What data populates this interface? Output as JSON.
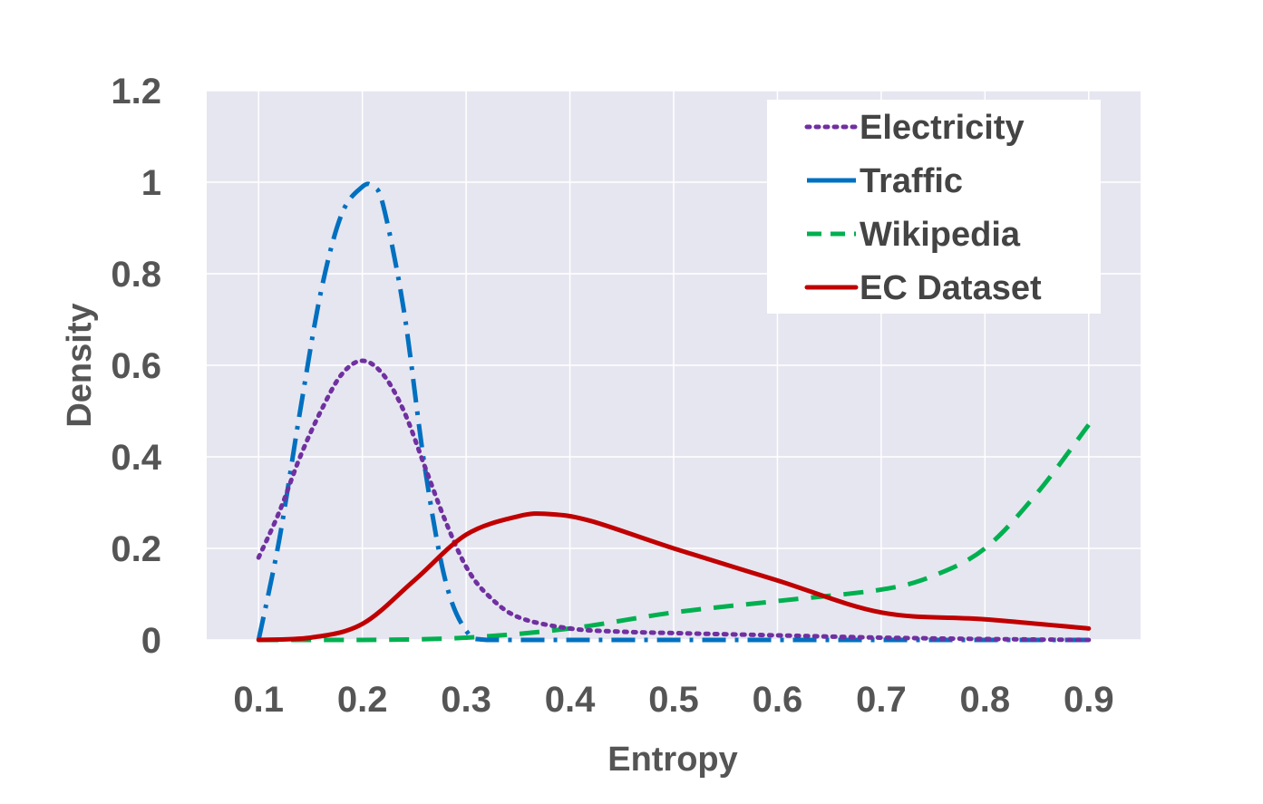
{
  "chart_data": {
    "type": "line",
    "title": "",
    "xlabel": "Entropy",
    "ylabel": "Density",
    "xlim": [
      0.05,
      0.95
    ],
    "ylim": [
      0,
      1.2
    ],
    "x_ticks": [
      "0.1",
      "0.2",
      "0.3",
      "0.4",
      "0.5",
      "0.6",
      "0.7",
      "0.8",
      "0.9"
    ],
    "y_ticks": [
      "0",
      "0.2",
      "0.4",
      "0.6",
      "0.8",
      "1",
      "1.2"
    ],
    "grid": true,
    "legend_position": "top-right",
    "plot_background": "#e6e6f0",
    "series": [
      {
        "name": "Electricity",
        "color": "#7030a0",
        "style": "dotted",
        "x": [
          0.1,
          0.12,
          0.14,
          0.16,
          0.18,
          0.2,
          0.22,
          0.24,
          0.26,
          0.28,
          0.3,
          0.32,
          0.35,
          0.4,
          0.45,
          0.5,
          0.6,
          0.7,
          0.8,
          0.9
        ],
        "y": [
          0.18,
          0.28,
          0.4,
          0.5,
          0.58,
          0.61,
          0.58,
          0.5,
          0.38,
          0.26,
          0.16,
          0.1,
          0.05,
          0.025,
          0.018,
          0.015,
          0.01,
          0.005,
          0.002,
          0.0
        ]
      },
      {
        "name": "Traffic",
        "color": "#0070c0",
        "style": "dashdot",
        "x": [
          0.1,
          0.12,
          0.14,
          0.16,
          0.18,
          0.2,
          0.21,
          0.22,
          0.24,
          0.26,
          0.28,
          0.3,
          0.32,
          0.4,
          0.5,
          0.6,
          0.7,
          0.8,
          0.9
        ],
        "y": [
          0.0,
          0.22,
          0.5,
          0.76,
          0.93,
          0.99,
          0.99,
          0.95,
          0.72,
          0.38,
          0.13,
          0.02,
          0.0,
          0.0,
          0.0,
          0.0,
          0.0,
          0.0,
          0.0
        ]
      },
      {
        "name": "Wikipedia",
        "color": "#00b050",
        "style": "dashed",
        "x": [
          0.1,
          0.2,
          0.3,
          0.4,
          0.5,
          0.6,
          0.7,
          0.75,
          0.8,
          0.85,
          0.9
        ],
        "y": [
          0.0,
          0.0,
          0.005,
          0.025,
          0.06,
          0.085,
          0.11,
          0.14,
          0.2,
          0.32,
          0.47
        ]
      },
      {
        "name": "EC Dataset",
        "color": "#c00000",
        "style": "solid",
        "x": [
          0.1,
          0.15,
          0.2,
          0.25,
          0.3,
          0.35,
          0.38,
          0.42,
          0.5,
          0.6,
          0.7,
          0.8,
          0.9
        ],
        "y": [
          0.0,
          0.005,
          0.035,
          0.13,
          0.23,
          0.27,
          0.275,
          0.26,
          0.2,
          0.13,
          0.06,
          0.045,
          0.025
        ]
      }
    ]
  }
}
